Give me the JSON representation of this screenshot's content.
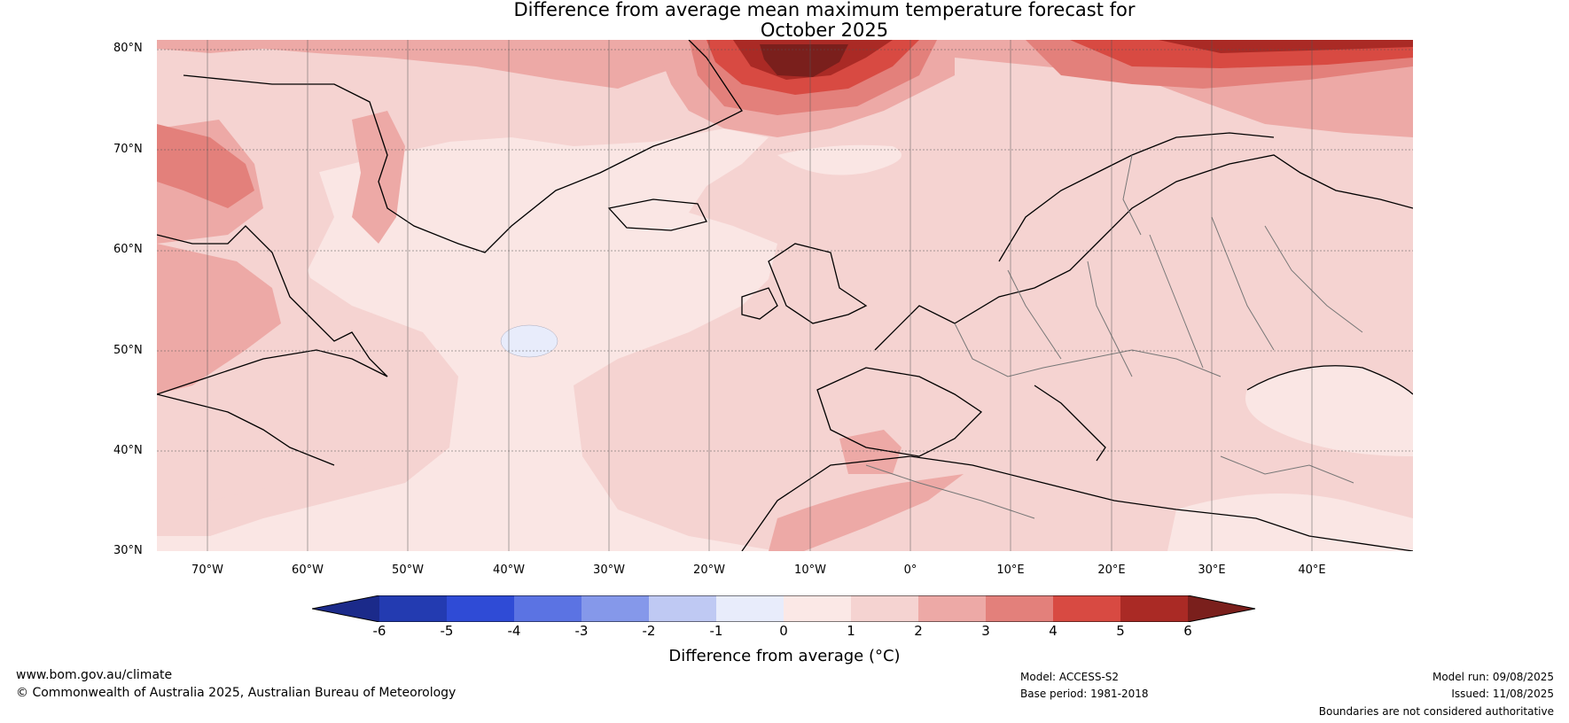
{
  "title_line1": "Difference from average mean maximum temperature forecast for",
  "title_line2": "October 2025",
  "lat_labels": [
    "80°N",
    "70°N",
    "60°N",
    "50°N",
    "40°N",
    "30°N"
  ],
  "lon_labels": [
    "70°W",
    "60°W",
    "50°W",
    "40°W",
    "30°W",
    "20°W",
    "10°W",
    "0°",
    "10°E",
    "20°E",
    "30°E",
    "40°E"
  ],
  "colorbar": {
    "ticks": [
      "-6",
      "-5",
      "-4",
      "-3",
      "-2",
      "-1",
      "0",
      "1",
      "2",
      "3",
      "4",
      "5",
      "6"
    ],
    "colors": [
      "#1b2a8a",
      "#233bb1",
      "#2f4bd6",
      "#5b73e3",
      "#8598ea",
      "#bfc9f3",
      "#e8ecfb",
      "#fbe8e6",
      "#f5d3d1",
      "#eda9a6",
      "#e3807b",
      "#d84a42",
      "#aa2a25",
      "#7a1f1c"
    ],
    "label": "Difference from average (°C)"
  },
  "legend": {
    "minus1_0": "#e8ecfb",
    "0_1": "#fbe8e6",
    "1_2": "#f5d3d1",
    "2_3": "#eda9a6",
    "3_4": "#e3807b",
    "4_5": "#d84a42",
    "5_6": "#aa2a25",
    "above_6": "#7a1f1c"
  },
  "footer": {
    "website": "www.bom.gov.au/climate",
    "copyright": "© Commonwealth of Australia 2025, Australian Bureau of Meteorology",
    "model": "Model: ACCESS-S2",
    "base_period": "Base period: 1981-2018",
    "model_run": "Model run: 09/08/2025",
    "issued": "Issued: 11/08/2025",
    "disclaimer": "Boundaries are not considered authoritative"
  }
}
